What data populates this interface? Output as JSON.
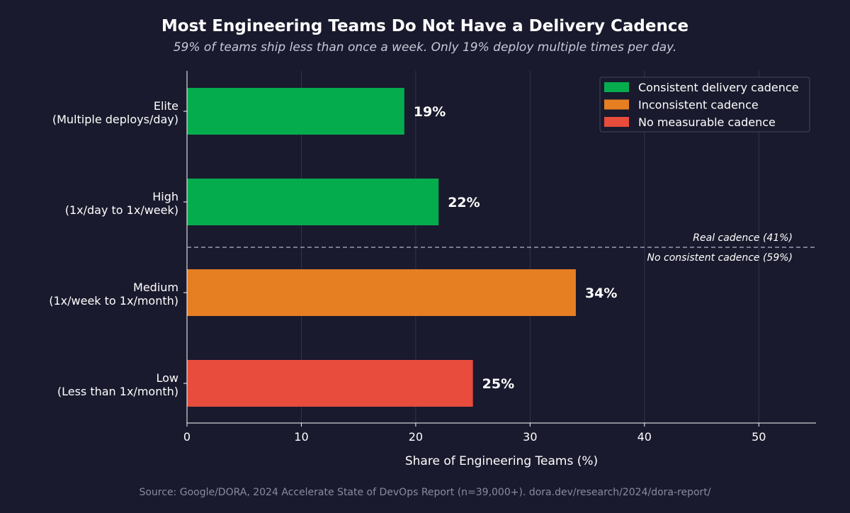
{
  "chart_data": {
    "type": "bar",
    "orientation": "horizontal",
    "title": "Most Engineering Teams Do Not Have a Delivery Cadence",
    "subtitle": "59% of teams ship less than once a week. Only 19% deploy multiple times per day.",
    "xlabel": "Share of Engineering Teams (%)",
    "ylabel": "",
    "xlim": [
      0,
      55
    ],
    "xticks": [
      0,
      10,
      20,
      30,
      40,
      50
    ],
    "grid": "vertical",
    "categories": [
      [
        "Elite",
        "(Multiple deploys/day)"
      ],
      [
        "High",
        "(1x/day to 1x/week)"
      ],
      [
        "Medium",
        "(1x/week to 1x/month)"
      ],
      [
        "Low",
        "(Less than 1x/month)"
      ]
    ],
    "values": [
      19,
      22,
      34,
      25
    ],
    "data_labels": [
      "19%",
      "22%",
      "34%",
      "25%"
    ],
    "bar_groups": [
      0,
      0,
      1,
      2
    ],
    "legend": {
      "placement": "top-right",
      "entries": [
        {
          "label": "Consistent delivery cadence",
          "color": "#05ac4e"
        },
        {
          "label": "Inconsistent cadence",
          "color": "#e67e22"
        },
        {
          "label": "No measurable cadence",
          "color": "#e74c3c"
        }
      ]
    },
    "divider": {
      "between": [
        "High",
        "Medium"
      ],
      "label_above": "Real cadence (41%)",
      "label_below": "No consistent cadence (59%)"
    },
    "source": "Source: Google/DORA, 2024 Accelerate State of DevOps Report (n=39,000+). dora.dev/research/2024/dora-report/"
  },
  "colors": {
    "background": "#1a1a2e",
    "grid": "#33334d",
    "text": "#ffffff",
    "muted": "#8a8aa0"
  }
}
